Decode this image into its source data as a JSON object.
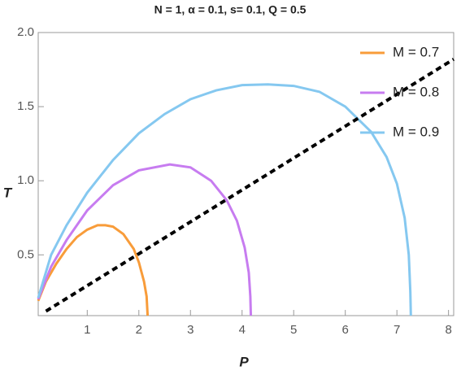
{
  "chart_data": {
    "type": "line",
    "title": "N = 1, α = 0.1, s= 0.1, Q = 0.5",
    "x_label": "P",
    "y_label": "T",
    "xlim": [
      0.05,
      8.1
    ],
    "ylim": [
      0.09,
      2.0
    ],
    "xticks": [
      1,
      2,
      3,
      4,
      5,
      6,
      7,
      8
    ],
    "yticks": [
      0.5,
      {
        "value": 1,
        "label": "1.0"
      },
      1.5,
      {
        "value": 2,
        "label": "2.0"
      }
    ],
    "legend": "top-right",
    "series": [
      {
        "name": "M = 0.7",
        "color": "#f89c3a",
        "x": [
          0.05,
          0.2,
          0.4,
          0.6,
          0.8,
          1.0,
          1.2,
          1.35,
          1.5,
          1.7,
          1.9,
          2.0,
          2.1,
          2.15,
          2.17
        ],
        "values": [
          0.19,
          0.32,
          0.44,
          0.54,
          0.62,
          0.67,
          0.7,
          0.7,
          0.69,
          0.64,
          0.54,
          0.45,
          0.32,
          0.22,
          0.09
        ]
      },
      {
        "name": "M = 0.8",
        "color": "#c77cf0",
        "x": [
          0.05,
          0.3,
          0.6,
          1.0,
          1.5,
          2.0,
          2.6,
          3.0,
          3.4,
          3.7,
          3.9,
          4.05,
          4.13,
          4.16,
          4.17
        ],
        "values": [
          0.2,
          0.42,
          0.6,
          0.8,
          0.97,
          1.07,
          1.11,
          1.09,
          1.0,
          0.87,
          0.73,
          0.55,
          0.38,
          0.22,
          0.09
        ]
      },
      {
        "name": "M = 0.9",
        "color": "#85c8f0",
        "x": [
          0.05,
          0.3,
          0.6,
          1.0,
          1.5,
          2.0,
          2.5,
          3.0,
          3.5,
          4.0,
          4.5,
          5.0,
          5.5,
          6.0,
          6.5,
          6.8,
          7.0,
          7.15,
          7.23,
          7.26,
          7.27
        ],
        "values": [
          0.21,
          0.5,
          0.7,
          0.92,
          1.14,
          1.32,
          1.45,
          1.55,
          1.61,
          1.645,
          1.65,
          1.64,
          1.6,
          1.5,
          1.33,
          1.16,
          0.98,
          0.75,
          0.5,
          0.25,
          0.09
        ]
      }
    ],
    "reference_line": {
      "color": "#000000",
      "x": [
        0.2,
        8.1
      ],
      "values": [
        0.12,
        1.82
      ]
    }
  }
}
